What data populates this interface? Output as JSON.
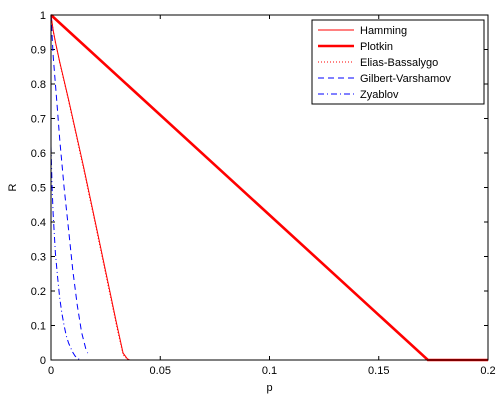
{
  "chart_data": {
    "type": "line",
    "xlabel": "p",
    "ylabel": "R",
    "xlim": [
      0,
      0.2
    ],
    "ylim": [
      0,
      1
    ],
    "xticks": [
      "0",
      "0.05",
      "0.1",
      "0.15",
      "0.2"
    ],
    "yticks": [
      "0",
      "0.1",
      "0.2",
      "0.3",
      "0.4",
      "0.5",
      "0.6",
      "0.7",
      "0.8",
      "0.9",
      "1"
    ],
    "grid": false,
    "legend_position": "top-right",
    "series": [
      {
        "name": "Hamming",
        "color": "#ff0000",
        "style": "solid",
        "x": [
          0,
          0.001,
          0.002,
          0.004,
          0.006,
          0.008,
          0.01,
          0.012,
          0.015,
          0.018,
          0.021,
          0.024,
          0.027,
          0.03,
          0.033,
          0.035,
          0.036
        ],
        "y": [
          1,
          0.955,
          0.922,
          0.864,
          0.81,
          0.756,
          0.7,
          0.643,
          0.557,
          0.468,
          0.378,
          0.288,
          0.197,
          0.107,
          0.02,
          0.003,
          0
        ]
      },
      {
        "name": "Plotkin",
        "color": "#ff0000",
        "style": "thick",
        "x": [
          0,
          0.1725,
          0.2
        ],
        "y": [
          1,
          0,
          0
        ]
      },
      {
        "name": "Elias-Bassalygo",
        "color": "#ff0000",
        "style": "dotted",
        "x": [
          0,
          0.001,
          0.002,
          0.004,
          0.006,
          0.008,
          0.01,
          0.012,
          0.015,
          0.018,
          0.021,
          0.024,
          0.027,
          0.03,
          0.033,
          0.035,
          0.036
        ],
        "y": [
          1,
          0.955,
          0.92,
          0.862,
          0.807,
          0.752,
          0.696,
          0.638,
          0.551,
          0.462,
          0.372,
          0.281,
          0.19,
          0.1,
          0.015,
          0.002,
          0
        ]
      },
      {
        "name": "Gilbert-Varshamov",
        "color": "#0000ff",
        "style": "dashed",
        "x": [
          0,
          0.001,
          0.002,
          0.003,
          0.004,
          0.006,
          0.008,
          0.01,
          0.012,
          0.014,
          0.016,
          0.0168
        ],
        "y": [
          1,
          0.88,
          0.8,
          0.72,
          0.64,
          0.5,
          0.38,
          0.26,
          0.16,
          0.08,
          0.03,
          0.02
        ]
      },
      {
        "name": "Zyablov",
        "color": "#0000ff",
        "style": "dashdot",
        "x": [
          0,
          0.0005,
          0.001,
          0.002,
          0.003,
          0.004,
          0.005,
          0.006,
          0.007,
          0.008,
          0.009,
          0.01,
          0.011,
          0.012,
          0.013
        ],
        "y": [
          0.62,
          0.5,
          0.42,
          0.31,
          0.24,
          0.18,
          0.135,
          0.1,
          0.07,
          0.05,
          0.035,
          0.022,
          0.012,
          0.005,
          0.002
        ]
      }
    ]
  }
}
